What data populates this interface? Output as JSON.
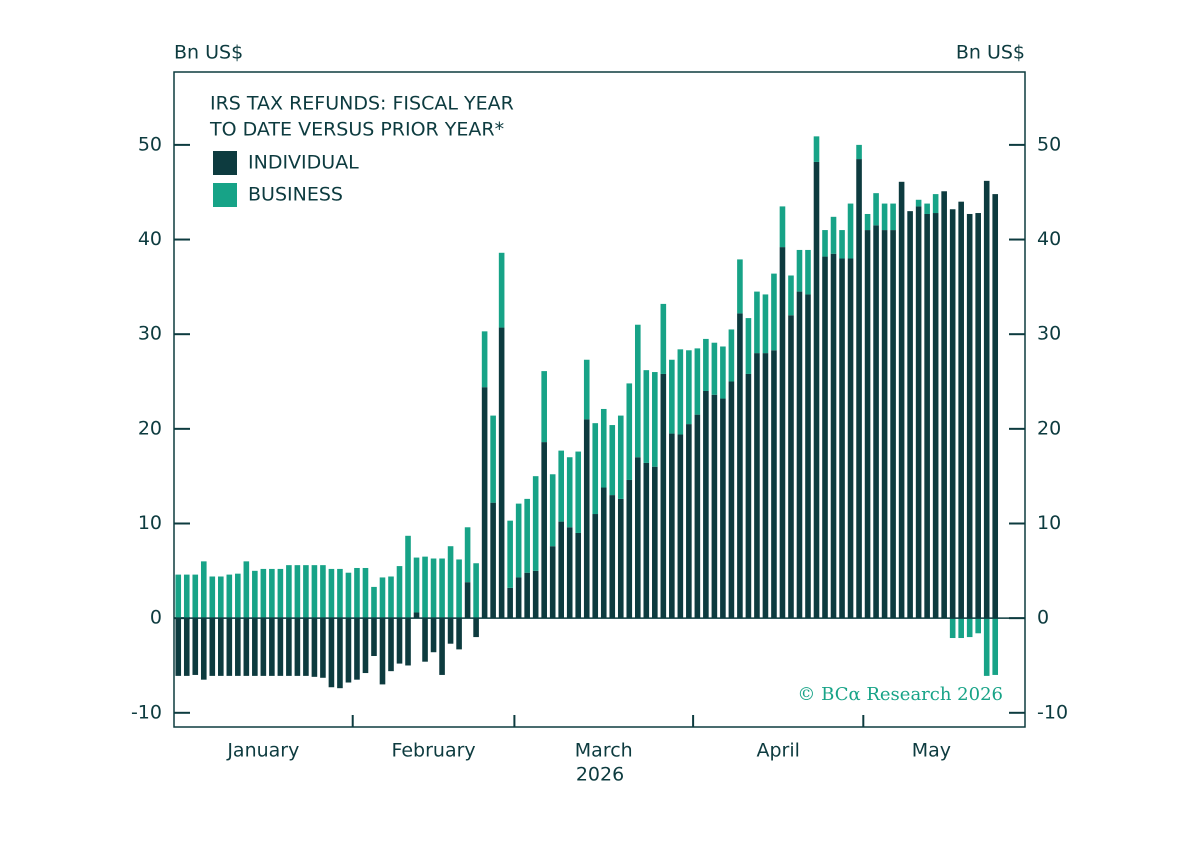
{
  "chart_data": {
    "type": "bar",
    "stacked": true,
    "title": [
      "IRS TAX REFUNDS: FISCAL YEAR",
      "TO DATE VERSUS PRIOR YEAR*"
    ],
    "ylabel": "Bn US$",
    "y2label": "Bn US$",
    "xlabel": "2026",
    "x_groups": [
      "January",
      "February",
      "March",
      "April",
      "May"
    ],
    "source": "© BCα Research 2026",
    "categories": [
      null,
      null,
      null,
      null,
      null,
      null,
      null,
      null,
      null,
      null,
      null,
      null,
      null,
      null,
      null,
      null,
      null,
      null,
      null,
      null,
      null,
      null,
      null,
      null,
      null,
      null,
      null,
      null,
      null,
      null,
      null,
      null,
      null,
      null,
      null,
      null,
      null,
      null,
      null,
      null,
      null,
      null,
      null,
      null,
      null,
      null,
      null,
      null,
      null,
      null,
      null,
      null,
      null,
      null,
      null,
      null,
      null,
      null,
      null,
      null,
      null,
      null,
      null,
      null,
      null,
      null,
      null,
      null,
      null,
      null,
      null,
      null,
      null,
      null,
      null,
      null,
      null,
      null,
      null,
      null,
      null,
      null,
      null,
      null,
      null,
      null,
      null,
      null,
      null,
      null,
      null,
      null,
      null,
      null,
      null,
      null,
      null
    ],
    "series": [
      {
        "name": "INDIVIDUAL",
        "color": "#0d3b3f",
        "values": [
          -6.1,
          -6.1,
          -6.0,
          -6.5,
          -6.1,
          -6.1,
          -6.1,
          -6.1,
          -6.1,
          -6.1,
          -6.1,
          -6.1,
          -6.1,
          -6.1,
          -6.1,
          -6.1,
          -6.2,
          -6.3,
          -7.3,
          -7.4,
          -6.8,
          -6.5,
          -5.8,
          -4.0,
          -7.0,
          -5.6,
          -4.8,
          -5.0,
          0.6,
          -4.6,
          -3.6,
          -6.0,
          -2.7,
          -3.3,
          3.8,
          -2.0,
          24.4,
          12.2,
          30.7,
          3.2,
          4.3,
          4.8,
          5.0,
          18.6,
          7.6,
          10.2,
          9.6,
          9.0,
          21.0,
          11.0,
          13.8,
          13.0,
          12.6,
          14.6,
          17.0,
          16.4,
          16.0,
          25.8,
          19.5,
          19.4,
          20.5,
          21.5,
          24.0,
          23.6,
          23.2,
          25.0,
          32.2,
          25.8,
          28.0,
          28.0,
          28.3,
          39.2,
          32.0,
          34.5,
          34.2,
          48.2,
          38.2,
          38.5,
          38.0,
          38.0,
          48.5,
          41.0,
          41.5,
          41.0,
          41.0,
          46.1,
          43.0,
          43.5,
          42.7,
          42.8,
          45.1,
          43.2,
          44.0,
          42.7,
          42.8,
          46.2,
          44.8
        ]
      },
      {
        "name": "BUSINESS",
        "color": "#17a387",
        "values": [
          4.6,
          4.6,
          4.6,
          6.0,
          4.4,
          4.4,
          4.6,
          4.7,
          6.0,
          5.0,
          5.2,
          5.2,
          5.2,
          5.6,
          5.6,
          5.6,
          5.6,
          5.6,
          5.2,
          5.2,
          4.8,
          5.3,
          5.3,
          3.3,
          4.3,
          4.4,
          5.5,
          8.7,
          5.8,
          6.5,
          6.3,
          6.3,
          7.6,
          6.2,
          5.8,
          5.8,
          5.9,
          9.2,
          7.9,
          7.1,
          7.8,
          7.8,
          10.0,
          7.5,
          7.6,
          7.5,
          7.4,
          8.6,
          6.3,
          9.6,
          8.3,
          7.4,
          8.8,
          10.2,
          14.0,
          9.8,
          10.0,
          7.4,
          7.8,
          9.0,
          7.8,
          7.0,
          5.5,
          5.5,
          5.5,
          5.5,
          5.7,
          5.9,
          6.5,
          6.2,
          8.1,
          4.3,
          4.2,
          4.4,
          4.7,
          2.7,
          2.8,
          3.9,
          3.0,
          5.8,
          1.5,
          1.7,
          3.4,
          2.8,
          2.8,
          0,
          0,
          0.7,
          1.1,
          2.0,
          0,
          -2.1,
          -2.1,
          -2.0,
          -1.6,
          -6.1,
          -6.0
        ]
      }
    ],
    "ylim": [
      -11.5,
      57.7
    ],
    "yticks": [
      -10,
      0,
      10,
      20,
      30,
      40,
      50
    ],
    "y2lim": [
      -11.5,
      57.7
    ],
    "y2ticks": [
      -10,
      0,
      10,
      20,
      30,
      40,
      50
    ],
    "grid": false,
    "legend": "upper left"
  }
}
